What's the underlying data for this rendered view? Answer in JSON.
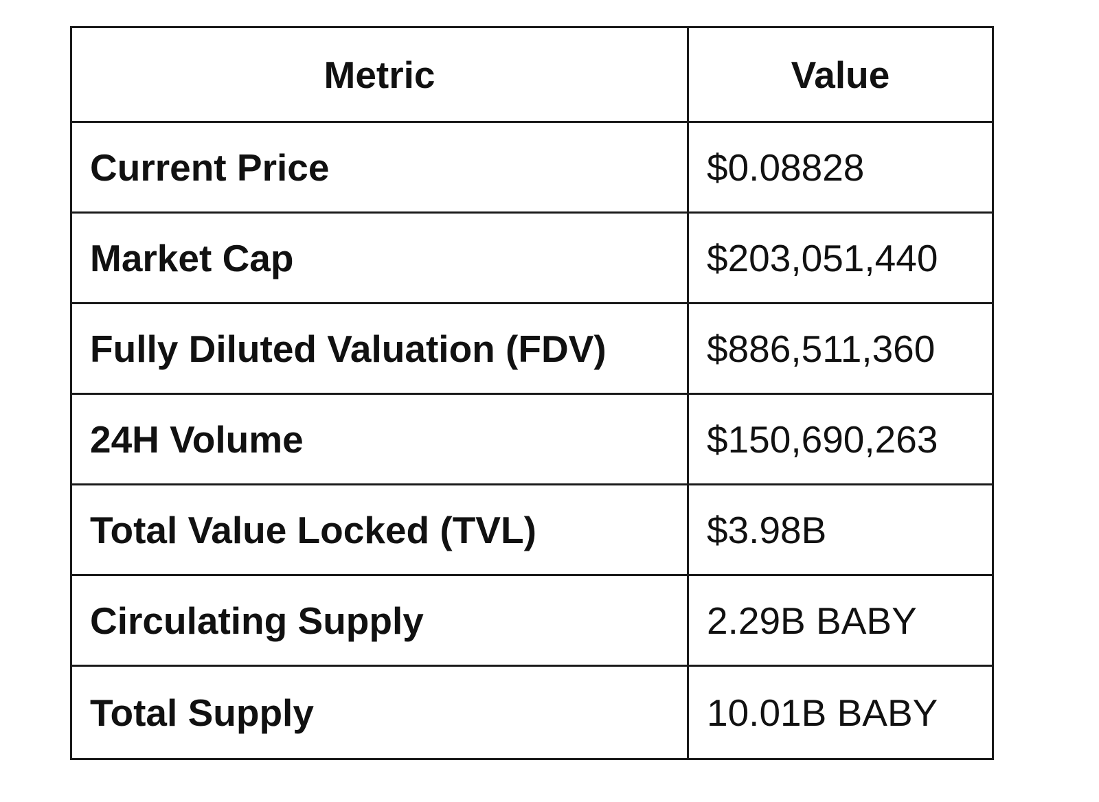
{
  "table": {
    "headers": {
      "metric": "Metric",
      "value": "Value"
    },
    "rows": [
      {
        "metric": "Current Price",
        "value": "$0.08828"
      },
      {
        "metric": "Market Cap",
        "value": "$203,051,440"
      },
      {
        "metric": "Fully Diluted Valuation (FDV)",
        "value": "$886,511,360"
      },
      {
        "metric": "24H Volume",
        "value": "$150,690,263"
      },
      {
        "metric": "Total Value Locked (TVL)",
        "value": "$3.98B"
      },
      {
        "metric": "Circulating Supply",
        "value": "2.29B BABY"
      },
      {
        "metric": "Total Supply",
        "value": "10.01B BABY"
      }
    ]
  }
}
